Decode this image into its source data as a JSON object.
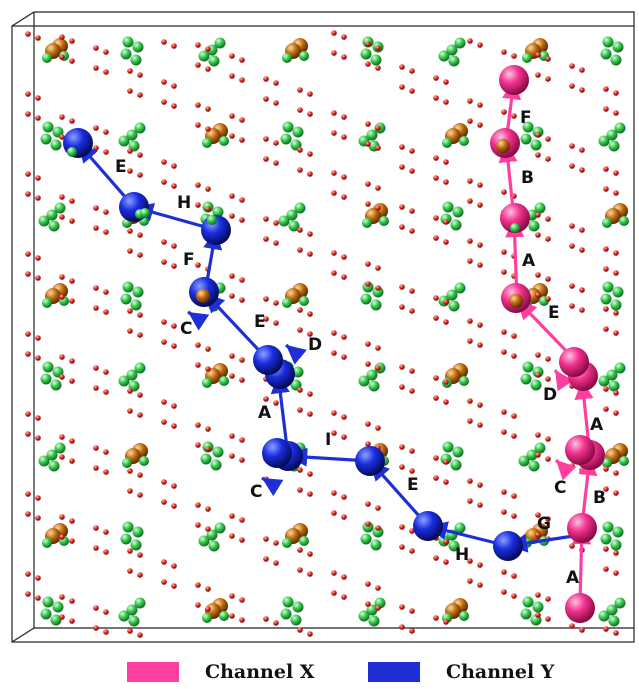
{
  "colors": {
    "channel_x": "#ff3fa0",
    "channel_y": "#1f2fd6",
    "green_atom": "#39d153",
    "brown_atom": "#c7700f",
    "red_atom": "#e03020",
    "frame": "#222222"
  },
  "legend": [
    {
      "label": "Channel X",
      "color": "#ff3fa0"
    },
    {
      "label": "Channel Y",
      "color": "#1f2fd6"
    }
  ],
  "channel_x": {
    "labels": [
      "A",
      "B",
      "C",
      "A",
      "D",
      "E",
      "A",
      "B",
      "F",
      "G"
    ]
  },
  "channel_y": {
    "labels": [
      "H",
      "E",
      "I",
      "C",
      "A",
      "D",
      "E",
      "C",
      "F",
      "H",
      "E"
    ]
  }
}
